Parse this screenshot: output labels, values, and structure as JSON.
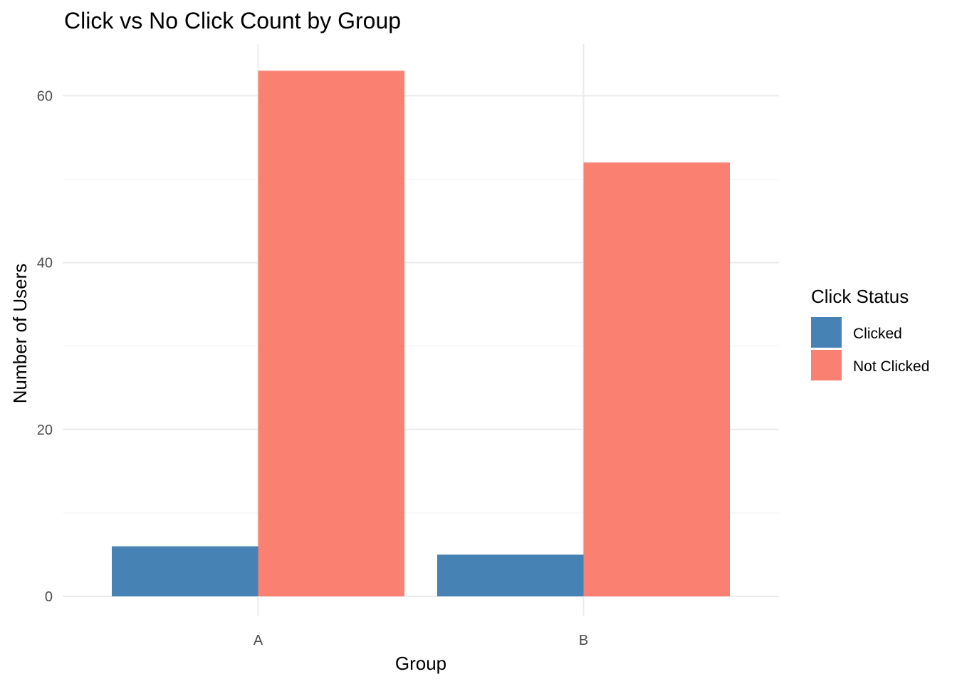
{
  "chart_data": {
    "type": "bar",
    "title": "Click vs No Click Count by Group",
    "xlabel": "Group",
    "ylabel": "Number of Users",
    "categories": [
      "A",
      "B"
    ],
    "series": [
      {
        "name": "Clicked",
        "values": [
          6,
          5
        ],
        "color": "#4682B4"
      },
      {
        "name": "Not Clicked",
        "values": [
          63,
          52
        ],
        "color": "#FA8072"
      }
    ],
    "ylim": [
      0,
      66
    ],
    "yticks": [
      0,
      20,
      40,
      60
    ],
    "grid": true,
    "legend": {
      "title": "Click Status",
      "position": "right"
    }
  }
}
